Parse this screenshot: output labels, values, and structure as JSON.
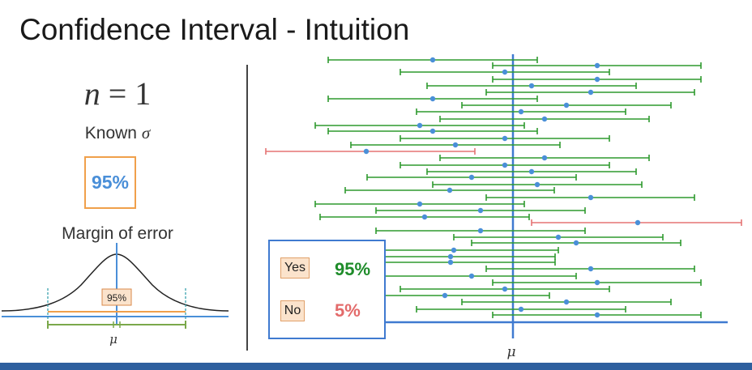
{
  "title": "Confidence Interval - Intuition",
  "sample": {
    "n_symbol": "n",
    "equals": "=",
    "n_value": "1"
  },
  "known": {
    "text": "Known",
    "symbol": "σ"
  },
  "confidence_box": "95%",
  "margin_label": "Margin of error",
  "bell_curve": {
    "inner_label": "95%",
    "mean_label": "μ"
  },
  "main_mean_label": "μ",
  "legend": {
    "yes_label": "Yes",
    "yes_pct": "95%",
    "no_label": "No",
    "no_pct": "5%"
  },
  "colors": {
    "contains_mean": "#2e9a2e",
    "misses_mean": "#e57373",
    "sample_point": "#4a8fd8",
    "mean_line": "#3f7ad0",
    "box_border": "#f0a04b"
  }
}
